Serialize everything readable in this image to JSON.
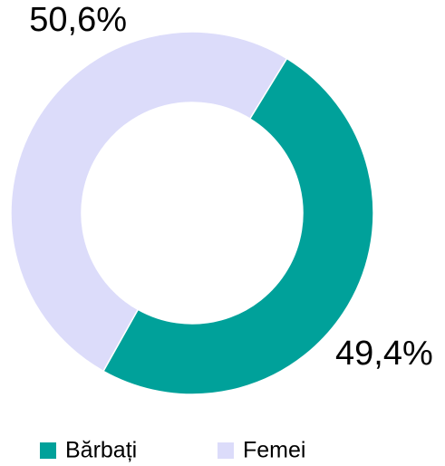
{
  "chart_data": {
    "type": "pie",
    "donut": true,
    "categories": [
      "Bărbați",
      "Femei"
    ],
    "values": [
      49.4,
      50.6
    ],
    "value_labels": [
      "49,4%",
      "50,6%"
    ],
    "colors": [
      "#00a19a",
      "#dcdcfa"
    ],
    "legend": "bottom"
  }
}
